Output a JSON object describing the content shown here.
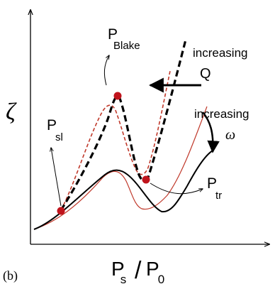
{
  "panel_label": "(b)",
  "y_axis_symbol": "ζ",
  "x_axis": {
    "numerator": "P",
    "numerator_sub": "s",
    "slash": "/",
    "denominator": "P",
    "denominator_sub": "0"
  },
  "labels": {
    "p_blake": "P",
    "p_blake_sub": "Blake",
    "p_sl": "P",
    "p_sl_sub": "sl",
    "p_tr": "P",
    "p_tr_sub": "tr",
    "increasing_q_line1": "increasing",
    "increasing_q_line2": "Q",
    "increasing_omega_line1": "increasing",
    "increasing_omega_line2": "ω"
  },
  "colors": {
    "red_curve": "#c0392b",
    "point_fill": "#c0141c",
    "black": "#000000"
  }
}
